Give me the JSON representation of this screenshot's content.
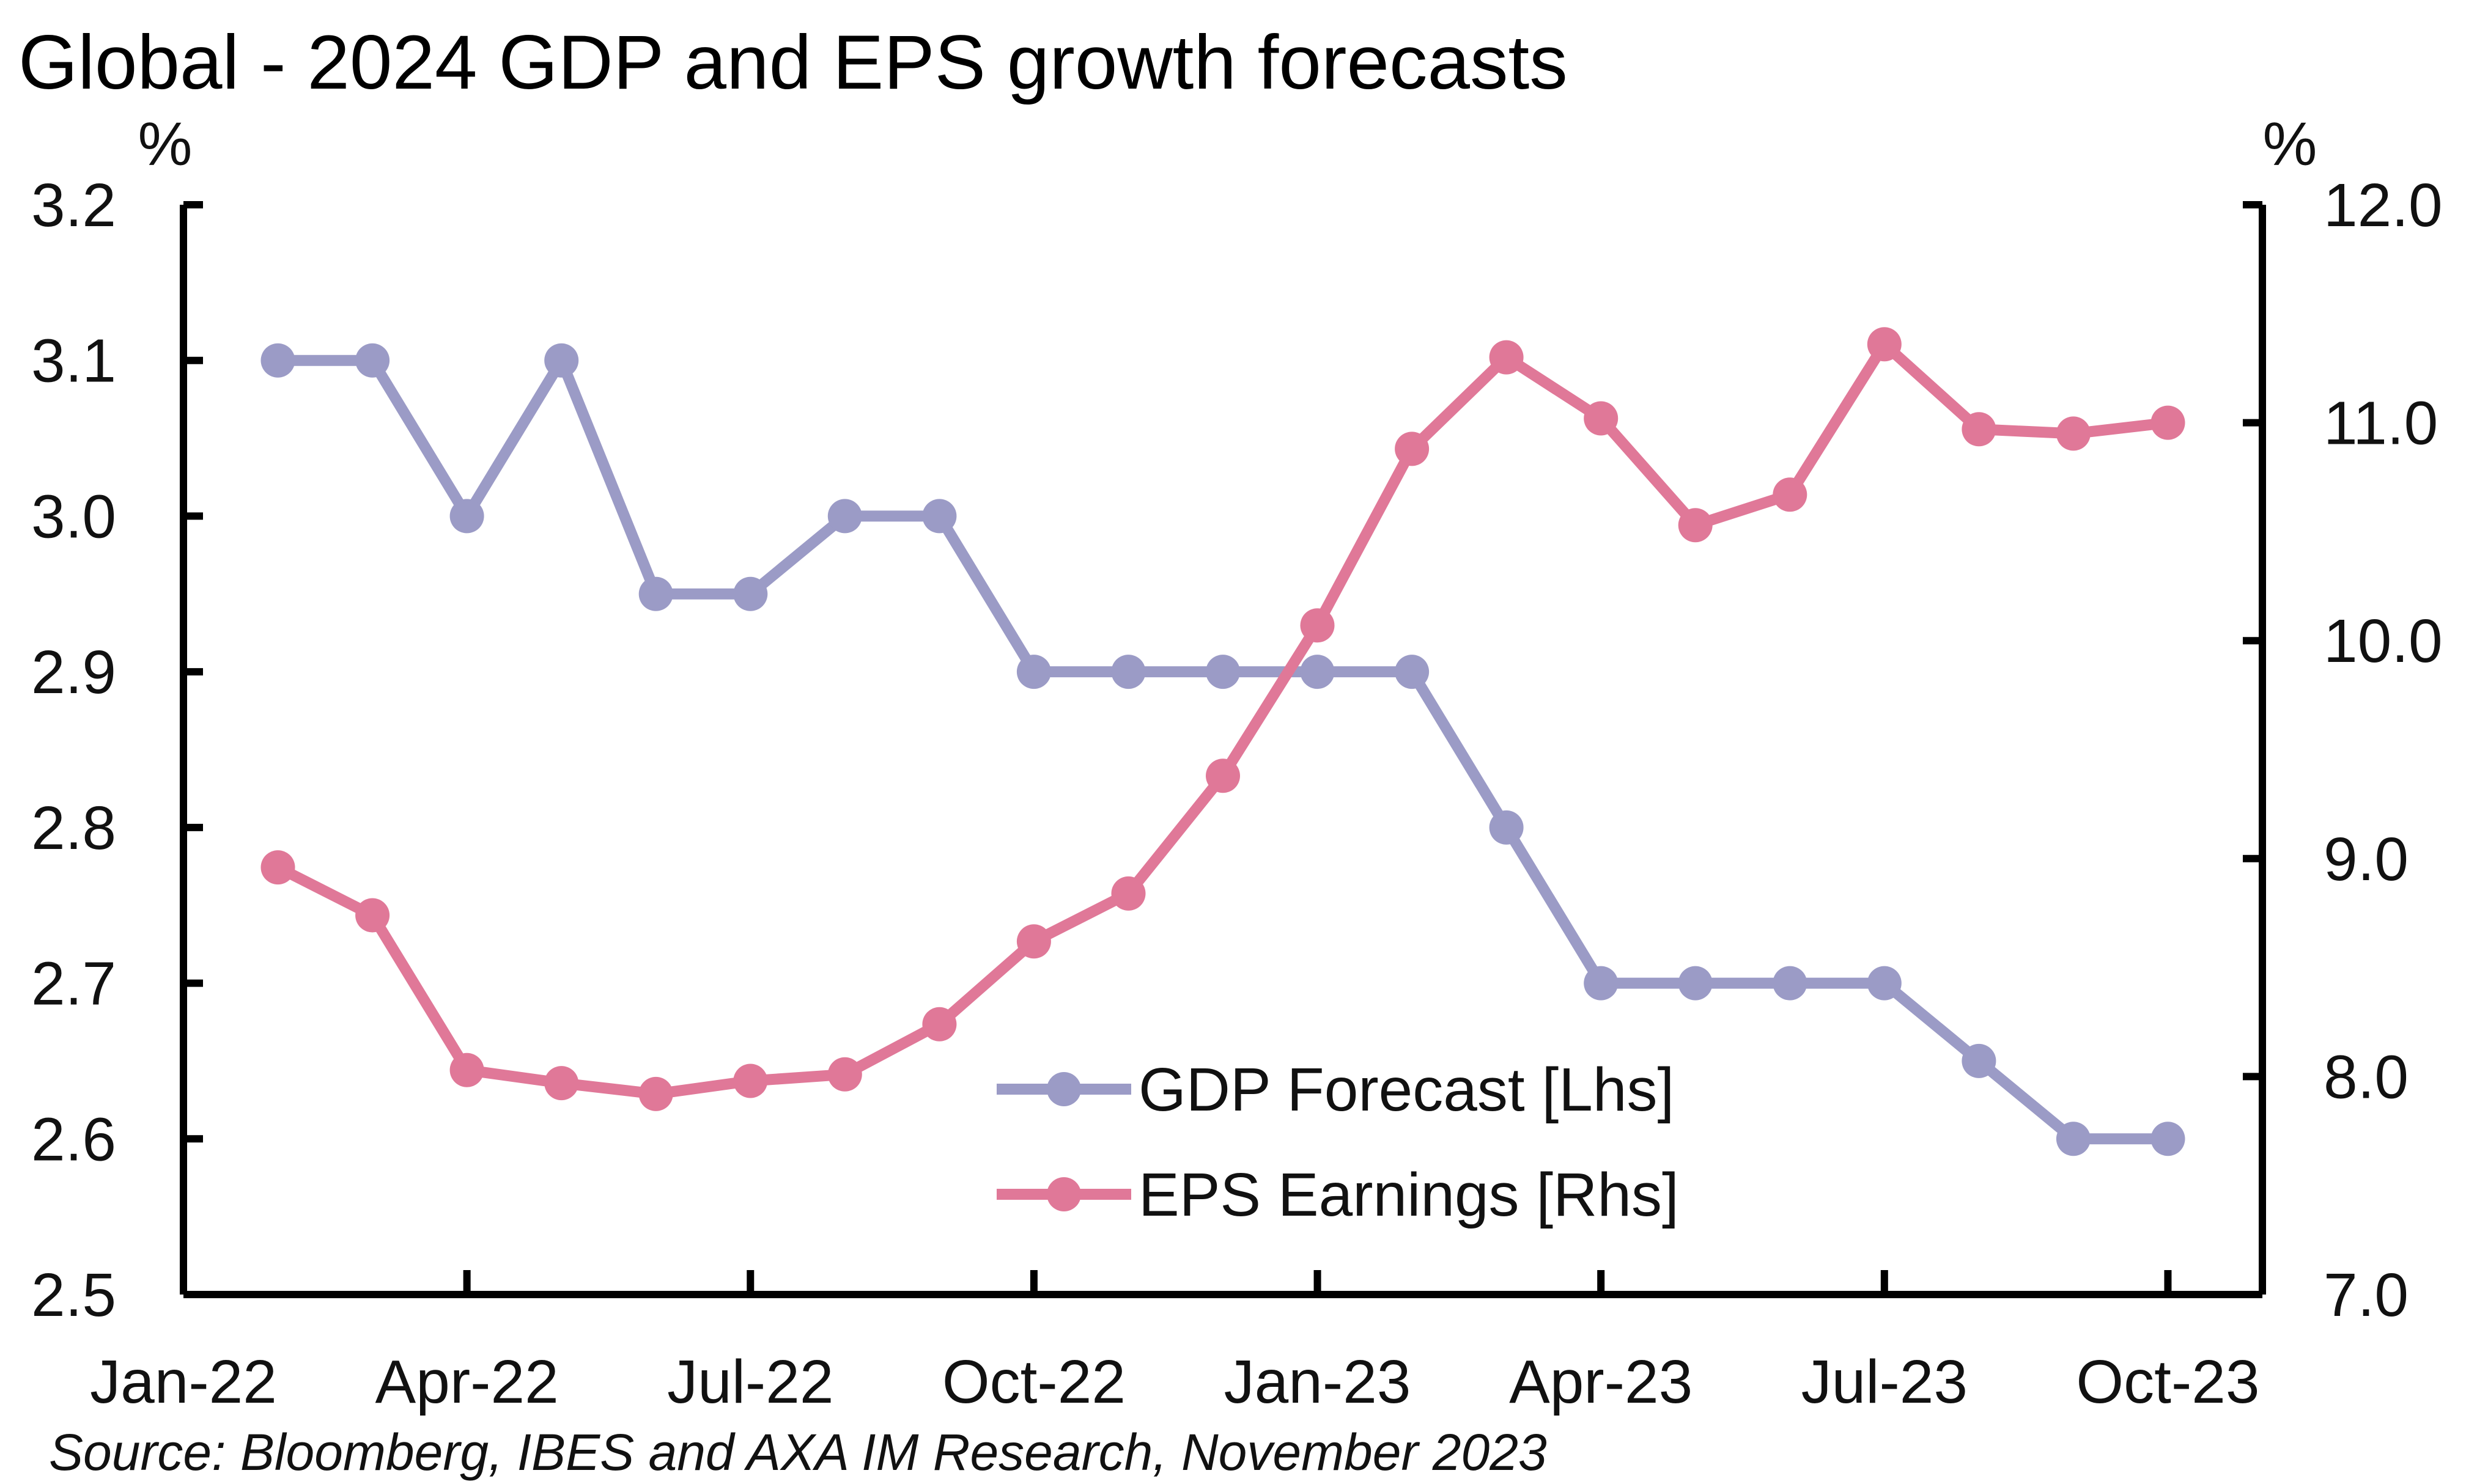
{
  "chart_data": {
    "type": "line",
    "title": "Global - 2024 GDP and EPS growth forecasts",
    "left_axis_unit": "%",
    "right_axis_unit": "%",
    "x_tick_labels": [
      "Jan-22",
      "Apr-22",
      "Jul-22",
      "Oct-22",
      "Jan-23",
      "Apr-23",
      "Jul-23",
      "Oct-23"
    ],
    "x": [
      "2022-02",
      "2022-03",
      "2022-04",
      "2022-05",
      "2022-06",
      "2022-07",
      "2022-08",
      "2022-09",
      "2022-10",
      "2022-11",
      "2022-12",
      "2023-01",
      "2023-02",
      "2023-03",
      "2023-04",
      "2023-05",
      "2023-06",
      "2023-07",
      "2023-08",
      "2023-09",
      "2023-10"
    ],
    "xlim": [
      "2022-01",
      "2023-11"
    ],
    "left_ylim": [
      2.5,
      3.2
    ],
    "left_yticks": [
      "3.2",
      "3.1",
      "3.0",
      "2.9",
      "2.8",
      "2.7",
      "2.6",
      "2.5"
    ],
    "right_ylim": [
      7.0,
      12.0
    ],
    "right_yticks": [
      "12.0",
      "11.0",
      "10.0",
      "9.0",
      "8.0",
      "7.0"
    ],
    "grid": false,
    "legend_position": "bottom-center",
    "series": [
      {
        "name": "GDP Forecast [Lhs]",
        "axis": "left",
        "color": "#9b9bc6",
        "values": [
          3.1,
          3.1,
          3.0,
          3.1,
          2.95,
          2.95,
          3.0,
          3.0,
          2.9,
          2.9,
          2.9,
          2.9,
          2.9,
          2.8,
          2.7,
          2.7,
          2.7,
          2.7,
          2.65,
          2.6,
          2.6
        ]
      },
      {
        "name": "EPS Earnings [Rhs]",
        "axis": "right",
        "color": "#e07898",
        "values": [
          8.96,
          8.74,
          8.03,
          7.97,
          7.92,
          7.98,
          8.01,
          8.24,
          8.62,
          8.84,
          9.38,
          10.07,
          10.88,
          11.3,
          11.02,
          10.53,
          10.67,
          11.36,
          10.97,
          10.95,
          11.0
        ]
      }
    ],
    "source": "Source: Bloomberg, IBES and AXA IM Research, November 2023"
  }
}
